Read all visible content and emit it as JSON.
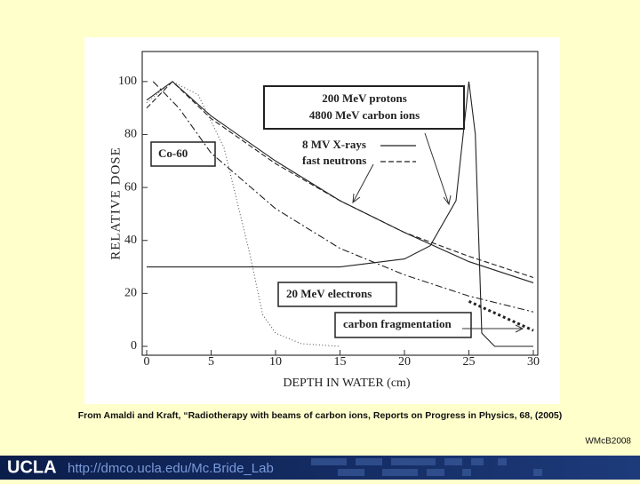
{
  "caption": "From Amaldi and Kraft, “Radiotherapy with beams of carbon ions, Reports on Progress in Physics, 68, (2005)",
  "credit": "WMcB2008",
  "footer": {
    "logo": "UCLA",
    "url": "http://dmco.ucla.edu/Mc.Bride_Lab"
  },
  "chart_data": {
    "type": "line",
    "xlabel": "DEPTH IN WATER (cm)",
    "ylabel": "RELATIVE DOSE",
    "xlim": [
      0,
      30
    ],
    "ylim": [
      0,
      110
    ],
    "xticks": [
      0,
      5,
      10,
      15,
      20,
      25,
      30
    ],
    "yticks": [
      0,
      20,
      40,
      60,
      80,
      100
    ],
    "annotations": [
      "4800 MeV carbon ions"
    ],
    "series": [
      {
        "name": "8 MV X-rays",
        "color": "#222222",
        "dash": "solid",
        "x": [
          0,
          2,
          5,
          10,
          15,
          20,
          25,
          30
        ],
        "values": [
          93,
          100,
          87,
          70,
          55,
          43,
          32,
          24
        ]
      },
      {
        "name": "fast neutrons",
        "color": "#222222",
        "dash": "dashed",
        "x": [
          0,
          2,
          5,
          10,
          15,
          20,
          25,
          30
        ],
        "values": [
          90,
          100,
          86,
          69,
          55,
          43,
          34,
          26
        ]
      },
      {
        "name": "Co-60",
        "color": "#222222",
        "dash": "dashdot",
        "x": [
          0.5,
          2.5,
          5,
          10,
          15,
          20,
          25,
          30
        ],
        "values": [
          100,
          90,
          73,
          52,
          37,
          27,
          19,
          13
        ]
      },
      {
        "name": "20 MeV electrons",
        "color": "#555555",
        "dash": "dotted",
        "x": [
          0,
          2,
          4,
          6,
          8,
          9,
          10,
          12,
          15
        ],
        "values": [
          92,
          100,
          95,
          75,
          35,
          12,
          5,
          1,
          0
        ]
      },
      {
        "name": "200 MeV protons",
        "color": "#222222",
        "dash": "solid",
        "x": [
          0,
          10,
          15,
          20,
          22,
          24,
          25,
          25.5,
          26,
          27,
          30
        ],
        "values": [
          30,
          30,
          30,
          33,
          38,
          55,
          100,
          80,
          5,
          0,
          0
        ]
      },
      {
        "name": "carbon fragmentation",
        "color": "#222222",
        "dash": "heavydot",
        "x": [
          25,
          30
        ],
        "values": [
          17,
          6
        ]
      }
    ]
  }
}
